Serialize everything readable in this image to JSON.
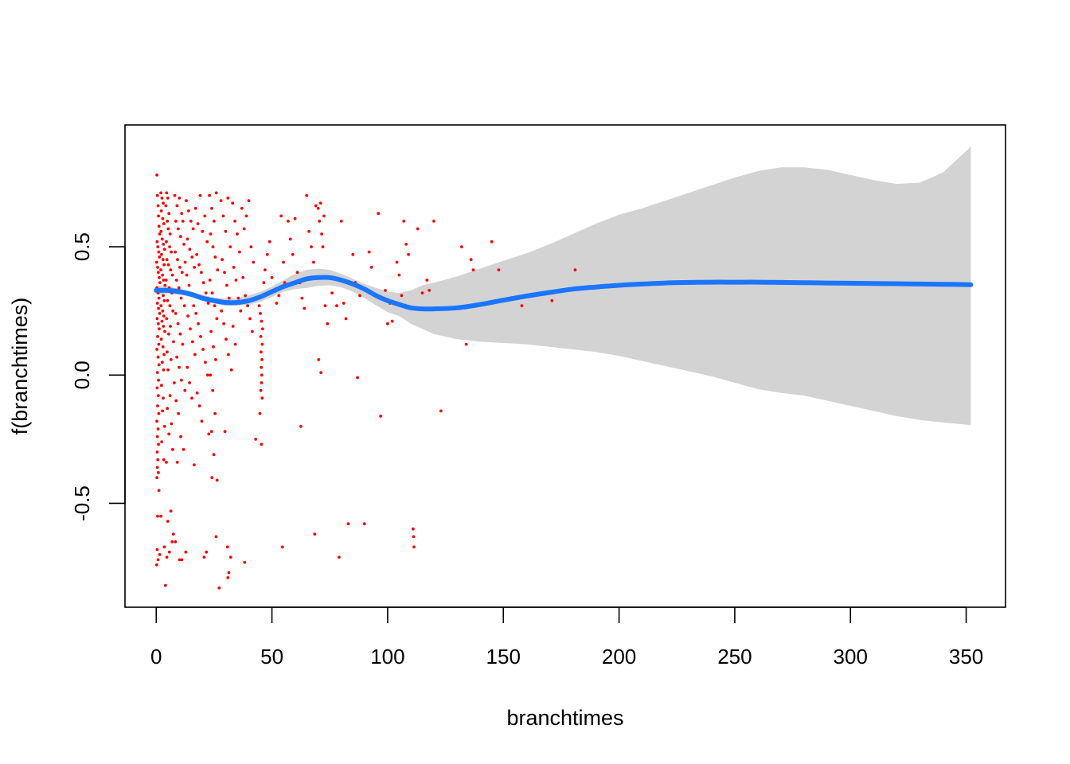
{
  "chart_data": {
    "type": "scatter",
    "title": "",
    "xlabel": "branchtimes",
    "ylabel": "f(branchtimes)",
    "xlim": [
      -13.5,
      367
    ],
    "ylim": [
      -0.905,
      0.975
    ],
    "x_ticks": [
      0,
      50,
      100,
      150,
      200,
      250,
      300,
      350
    ],
    "x_tick_labels": [
      "0",
      "50",
      "100",
      "150",
      "200",
      "250",
      "300",
      "350"
    ],
    "y_ticks": [
      -0.5,
      0.0,
      0.5
    ],
    "y_tick_labels": [
      "-0.5",
      "0.0",
      "0.5"
    ],
    "grid": false,
    "legend": "none",
    "colors": {
      "points": "#ff0000",
      "fit_line": "#1a75ff",
      "confidence_band": "#d3d3d3"
    },
    "points_rule": "partial residuals, dense near x=0",
    "fit": {
      "x": [
        0,
        5,
        10,
        15,
        20,
        25,
        30,
        35,
        40,
        45,
        50,
        55,
        60,
        65,
        70,
        75,
        80,
        85,
        90,
        95,
        100,
        105,
        110,
        115,
        120,
        130,
        140,
        150,
        160,
        170,
        180,
        190,
        200,
        210,
        220,
        230,
        240,
        250,
        260,
        270,
        280,
        290,
        300,
        310,
        320,
        330,
        340,
        352
      ],
      "y": [
        0.33,
        0.33,
        0.325,
        0.315,
        0.3,
        0.29,
        0.283,
        0.283,
        0.29,
        0.305,
        0.325,
        0.345,
        0.36,
        0.375,
        0.38,
        0.38,
        0.37,
        0.355,
        0.335,
        0.31,
        0.29,
        0.275,
        0.262,
        0.258,
        0.258,
        0.262,
        0.275,
        0.292,
        0.308,
        0.322,
        0.335,
        0.343,
        0.35,
        0.355,
        0.359,
        0.361,
        0.362,
        0.362,
        0.362,
        0.361,
        0.36,
        0.359,
        0.358,
        0.357,
        0.356,
        0.355,
        0.354,
        0.352
      ],
      "upper": [
        0.35,
        0.345,
        0.337,
        0.325,
        0.313,
        0.302,
        0.298,
        0.298,
        0.31,
        0.325,
        0.345,
        0.37,
        0.395,
        0.41,
        0.415,
        0.41,
        0.395,
        0.375,
        0.355,
        0.34,
        0.325,
        0.32,
        0.33,
        0.35,
        0.36,
        0.385,
        0.415,
        0.445,
        0.475,
        0.51,
        0.55,
        0.59,
        0.625,
        0.65,
        0.68,
        0.71,
        0.74,
        0.77,
        0.795,
        0.81,
        0.81,
        0.8,
        0.78,
        0.76,
        0.745,
        0.75,
        0.79,
        0.89
      ],
      "lower": [
        0.315,
        0.316,
        0.313,
        0.305,
        0.289,
        0.279,
        0.27,
        0.27,
        0.275,
        0.285,
        0.305,
        0.325,
        0.335,
        0.34,
        0.348,
        0.35,
        0.342,
        0.325,
        0.3,
        0.272,
        0.245,
        0.23,
        0.2,
        0.18,
        0.16,
        0.14,
        0.13,
        0.125,
        0.12,
        0.11,
        0.1,
        0.09,
        0.075,
        0.055,
        0.035,
        0.015,
        -0.005,
        -0.03,
        -0.055,
        -0.07,
        -0.08,
        -0.1,
        -0.12,
        -0.14,
        -0.16,
        -0.175,
        -0.185,
        -0.195
      ]
    },
    "points": [
      [
        0.3,
        0.78
      ],
      [
        0.5,
        0.7
      ],
      [
        0.8,
        0.66
      ],
      [
        1,
        0.62
      ],
      [
        1.2,
        0.58
      ],
      [
        1.5,
        0.55
      ],
      [
        0.4,
        0.52
      ],
      [
        0.7,
        0.5
      ],
      [
        1.1,
        0.48
      ],
      [
        1.4,
        0.46
      ],
      [
        0.2,
        0.44
      ],
      [
        0.6,
        0.42
      ],
      [
        0.9,
        0.4
      ],
      [
        1.3,
        0.38
      ],
      [
        1.6,
        0.36
      ],
      [
        0.3,
        0.34
      ],
      [
        0.8,
        0.32
      ],
      [
        1.2,
        0.3
      ],
      [
        0.5,
        0.28
      ],
      [
        1.0,
        0.26
      ],
      [
        1.5,
        0.24
      ],
      [
        0.4,
        0.22
      ],
      [
        0.9,
        0.2
      ],
      [
        1.3,
        0.18
      ],
      [
        0.6,
        0.15
      ],
      [
        1.1,
        0.12
      ],
      [
        0.3,
        0.1
      ],
      [
        0.8,
        0.07
      ],
      [
        1.2,
        0.04
      ],
      [
        0.5,
        0.01
      ],
      [
        1.0,
        -0.02
      ],
      [
        0.4,
        -0.05
      ],
      [
        0.9,
        -0.08
      ],
      [
        0.6,
        -0.12
      ],
      [
        1.1,
        -0.15
      ],
      [
        0.3,
        -0.18
      ],
      [
        0.8,
        -0.21
      ],
      [
        0.5,
        -0.24
      ],
      [
        1.0,
        -0.27
      ],
      [
        0.4,
        -0.3
      ],
      [
        0.7,
        -0.33
      ],
      [
        0.5,
        -0.36
      ],
      [
        0.9,
        -0.38
      ],
      [
        0.3,
        -0.4
      ],
      [
        1.2,
        -0.45
      ],
      [
        0.6,
        -0.55
      ],
      [
        0.4,
        -0.68
      ],
      [
        0.8,
        -0.72
      ],
      [
        1.5,
        -0.7
      ],
      [
        0.2,
        -0.74
      ],
      [
        2,
        0.71
      ],
      [
        2.5,
        0.69
      ],
      [
        3,
        0.67
      ],
      [
        2.2,
        0.64
      ],
      [
        2.8,
        0.61
      ],
      [
        3.3,
        0.59
      ],
      [
        2.1,
        0.56
      ],
      [
        2.6,
        0.53
      ],
      [
        3.1,
        0.51
      ],
      [
        3.6,
        0.49
      ],
      [
        2.3,
        0.47
      ],
      [
        2.9,
        0.45
      ],
      [
        3.4,
        0.43
      ],
      [
        2.0,
        0.41
      ],
      [
        2.7,
        0.39
      ],
      [
        3.2,
        0.37
      ],
      [
        3.8,
        0.35
      ],
      [
        2.4,
        0.33
      ],
      [
        3.0,
        0.31
      ],
      [
        3.5,
        0.29
      ],
      [
        2.1,
        0.27
      ],
      [
        2.8,
        0.25
      ],
      [
        3.3,
        0.23
      ],
      [
        2.5,
        0.21
      ],
      [
        3.1,
        0.19
      ],
      [
        3.7,
        0.17
      ],
      [
        2.2,
        0.14
      ],
      [
        2.9,
        0.11
      ],
      [
        3.4,
        0.08
      ],
      [
        2.6,
        0.05
      ],
      [
        3.2,
        0.02
      ],
      [
        2.3,
        -0.04
      ],
      [
        3.0,
        -0.09
      ],
      [
        2.7,
        -0.14
      ],
      [
        3.6,
        -0.2
      ],
      [
        2.4,
        -0.26
      ],
      [
        3.3,
        -0.33
      ],
      [
        2.0,
        -0.55
      ],
      [
        3.5,
        -0.67
      ],
      [
        4,
        -0.82
      ],
      [
        4.5,
        0.71
      ],
      [
        5,
        0.69
      ],
      [
        4.2,
        0.66
      ],
      [
        5.5,
        0.63
      ],
      [
        4.8,
        0.6
      ],
      [
        5.2,
        0.57
      ],
      [
        6,
        0.55
      ],
      [
        4.4,
        0.52
      ],
      [
        5.8,
        0.5
      ],
      [
        6.5,
        0.48
      ],
      [
        4.6,
        0.45
      ],
      [
        5.3,
        0.43
      ],
      [
        6.2,
        0.41
      ],
      [
        7,
        0.39
      ],
      [
        4.3,
        0.37
      ],
      [
        5.6,
        0.34
      ],
      [
        6.8,
        0.32
      ],
      [
        4.9,
        0.29
      ],
      [
        5.9,
        0.27
      ],
      [
        7.2,
        0.25
      ],
      [
        4.5,
        0.22
      ],
      [
        6.1,
        0.19
      ],
      [
        5.4,
        0.16
      ],
      [
        7.5,
        0.13
      ],
      [
        4.7,
        0.09
      ],
      [
        6.4,
        0.06
      ],
      [
        5.1,
        0.02
      ],
      [
        7.8,
        -0.03
      ],
      [
        6.0,
        -0.08
      ],
      [
        4.8,
        -0.13
      ],
      [
        6.6,
        -0.19
      ],
      [
        5.5,
        -0.23
      ],
      [
        7.1,
        -0.29
      ],
      [
        4.4,
        -0.34
      ],
      [
        6.3,
        -0.53
      ],
      [
        5.0,
        -0.57
      ],
      [
        7.4,
        -0.62
      ],
      [
        6.9,
        -0.65
      ],
      [
        5.7,
        -0.69
      ],
      [
        4.6,
        -0.71
      ],
      [
        8,
        0.7
      ],
      [
        9,
        0.66
      ],
      [
        10,
        0.69
      ],
      [
        11,
        0.63
      ],
      [
        8.5,
        0.6
      ],
      [
        9.5,
        0.57
      ],
      [
        10.5,
        0.54
      ],
      [
        11.5,
        0.6
      ],
      [
        12,
        0.51
      ],
      [
        8.2,
        0.48
      ],
      [
        9.2,
        0.45
      ],
      [
        10.2,
        0.42
      ],
      [
        11.2,
        0.4
      ],
      [
        12.5,
        0.44
      ],
      [
        8.8,
        0.37
      ],
      [
        9.8,
        0.34
      ],
      [
        10.8,
        0.3
      ],
      [
        12.2,
        0.27
      ],
      [
        8.4,
        0.24
      ],
      [
        9.4,
        0.2
      ],
      [
        10.4,
        0.16
      ],
      [
        11.4,
        0.12
      ],
      [
        8.9,
        0.07
      ],
      [
        9.9,
        0.03
      ],
      [
        10.9,
        -0.02
      ],
      [
        12.4,
        -0.06
      ],
      [
        8.6,
        -0.1
      ],
      [
        9.6,
        -0.15
      ],
      [
        10.6,
        -0.24
      ],
      [
        11.8,
        -0.29
      ],
      [
        9.1,
        -0.34
      ],
      [
        10.1,
        -0.72
      ],
      [
        11.1,
        -0.72
      ],
      [
        8.3,
        -0.65
      ],
      [
        12.8,
        -0.69
      ],
      [
        13,
        0.68
      ],
      [
        14,
        0.64
      ],
      [
        15,
        0.6
      ],
      [
        16,
        0.57
      ],
      [
        13.5,
        0.53
      ],
      [
        14.5,
        0.49
      ],
      [
        15.5,
        0.46
      ],
      [
        16.5,
        0.42
      ],
      [
        13.2,
        0.39
      ],
      [
        14.2,
        0.35
      ],
      [
        15.2,
        0.31
      ],
      [
        16.2,
        0.27
      ],
      [
        13.7,
        0.23
      ],
      [
        14.7,
        0.18
      ],
      [
        15.7,
        0.13
      ],
      [
        16.7,
        0.08
      ],
      [
        13.4,
        0.03
      ],
      [
        14.4,
        -0.03
      ],
      [
        15.4,
        -0.09
      ],
      [
        16.4,
        -0.35
      ],
      [
        17,
        0.65
      ],
      [
        18,
        0.59
      ],
      [
        19,
        0.7
      ],
      [
        20,
        0.56
      ],
      [
        21,
        0.62
      ],
      [
        22,
        0.52
      ],
      [
        17.5,
        0.47
      ],
      [
        18.5,
        0.43
      ],
      [
        19.5,
        0.4
      ],
      [
        20.5,
        0.36
      ],
      [
        21.5,
        0.32
      ],
      [
        22.5,
        0.28
      ],
      [
        17.2,
        0.24
      ],
      [
        18.2,
        0.2
      ],
      [
        19.2,
        0.15
      ],
      [
        20.2,
        0.1
      ],
      [
        21.2,
        0.05
      ],
      [
        22.2,
        0.0
      ],
      [
        17.7,
        -0.07
      ],
      [
        18.7,
        -0.12
      ],
      [
        19.7,
        -0.18
      ],
      [
        20.7,
        -0.71
      ],
      [
        21.7,
        -0.69
      ],
      [
        22.7,
        -0.23
      ],
      [
        23,
        0.7
      ],
      [
        24,
        0.65
      ],
      [
        25,
        0.6
      ],
      [
        26,
        0.71
      ],
      [
        23.5,
        0.55
      ],
      [
        24.5,
        0.5
      ],
      [
        25.5,
        0.46
      ],
      [
        26.5,
        0.41
      ],
      [
        23.2,
        0.37
      ],
      [
        24.2,
        0.32
      ],
      [
        25.2,
        0.27
      ],
      [
        26.2,
        0.22
      ],
      [
        23.7,
        0.17
      ],
      [
        24.7,
        0.11
      ],
      [
        25.7,
        0.06
      ],
      [
        23.4,
        0.0
      ],
      [
        24.4,
        -0.06
      ],
      [
        25.4,
        -0.15
      ],
      [
        23.9,
        -0.22
      ],
      [
        24.9,
        -0.31
      ],
      [
        24.1,
        -0.4
      ],
      [
        25.9,
        -0.63
      ],
      [
        26.3,
        -0.41
      ],
      [
        27.2,
        -0.83
      ],
      [
        28,
        0.68
      ],
      [
        29,
        0.62
      ],
      [
        30,
        0.56
      ],
      [
        31,
        0.69
      ],
      [
        32,
        0.5
      ],
      [
        28.5,
        0.45
      ],
      [
        29.5,
        0.4
      ],
      [
        30.5,
        0.35
      ],
      [
        31.5,
        0.3
      ],
      [
        28.2,
        0.25
      ],
      [
        29.2,
        0.2
      ],
      [
        30.2,
        0.14
      ],
      [
        31.2,
        0.08
      ],
      [
        32.5,
        0.02
      ],
      [
        29.7,
        -0.22
      ],
      [
        30.8,
        -0.67
      ],
      [
        31.4,
        -0.77
      ],
      [
        32.2,
        -0.71
      ],
      [
        31.0,
        -0.79
      ],
      [
        33,
        0.67
      ],
      [
        34,
        0.6
      ],
      [
        35,
        0.55
      ],
      [
        36,
        0.48
      ],
      [
        33.5,
        0.42
      ],
      [
        34.5,
        0.37
      ],
      [
        35.5,
        0.3
      ],
      [
        36.5,
        0.25
      ],
      [
        33.2,
        0.19
      ],
      [
        34.2,
        0.12
      ],
      [
        37,
        0.65
      ],
      [
        38,
        0.57
      ],
      [
        39,
        0.62
      ],
      [
        40,
        0.68
      ],
      [
        41,
        0.5
      ],
      [
        42,
        0.44
      ],
      [
        37.5,
        0.38
      ],
      [
        38.5,
        0.31
      ],
      [
        39.5,
        0.27
      ],
      [
        40.5,
        0.22
      ],
      [
        41.5,
        0.17
      ],
      [
        38.2,
        -0.73
      ],
      [
        43,
        -0.25
      ],
      [
        44,
        0.3
      ],
      [
        44.5,
        0.27
      ],
      [
        45,
        0.24
      ],
      [
        45.5,
        0.21
      ],
      [
        46,
        0.18
      ],
      [
        45.2,
        0.15
      ],
      [
        45.8,
        0.12
      ],
      [
        45.3,
        0.09
      ],
      [
        45.7,
        0.06
      ],
      [
        45.4,
        0.03
      ],
      [
        45.6,
        0.0
      ],
      [
        45.5,
        -0.03
      ],
      [
        45.2,
        -0.06
      ],
      [
        45.8,
        -0.09
      ],
      [
        44.8,
        -0.15
      ],
      [
        45.5,
        -0.27
      ],
      [
        46.5,
        0.36
      ],
      [
        47,
        0.41
      ],
      [
        48,
        0.47
      ],
      [
        49,
        0.52
      ],
      [
        50,
        0.38
      ],
      [
        51,
        0.33
      ],
      [
        52,
        0.28
      ],
      [
        53,
        0.31
      ],
      [
        54,
        0.62
      ],
      [
        55,
        0.44
      ],
      [
        55.5,
        0.36
      ],
      [
        54.5,
        -0.67
      ],
      [
        57,
        0.6
      ],
      [
        58,
        0.53
      ],
      [
        59,
        0.47
      ],
      [
        60,
        0.61
      ],
      [
        61,
        0.4
      ],
      [
        62,
        0.36
      ],
      [
        62.5,
        -0.2
      ],
      [
        63,
        0.3
      ],
      [
        64,
        0.26
      ],
      [
        65,
        0.7
      ],
      [
        66,
        0.56
      ],
      [
        67,
        0.5
      ],
      [
        68,
        0.44
      ],
      [
        68.5,
        -0.62
      ],
      [
        69,
        0.66
      ],
      [
        70,
        0.65
      ],
      [
        70.5,
        0.6
      ],
      [
        71,
        0.67
      ],
      [
        71.5,
        0.55
      ],
      [
        72,
        0.5
      ],
      [
        72.5,
        0.62
      ],
      [
        73,
        0.27
      ],
      [
        74,
        0.2
      ],
      [
        70.2,
        0.06
      ],
      [
        71.2,
        0.01
      ],
      [
        75,
        0.38
      ],
      [
        76,
        0.32
      ],
      [
        78,
        0.27
      ],
      [
        80,
        0.6
      ],
      [
        81,
        0.28
      ],
      [
        82,
        0.22
      ],
      [
        79,
        -0.71
      ],
      [
        83,
        -0.58
      ],
      [
        85,
        0.47
      ],
      [
        86,
        0.36
      ],
      [
        88,
        0.31
      ],
      [
        87,
        -0.01
      ],
      [
        90,
        -0.58
      ],
      [
        92,
        0.48
      ],
      [
        93,
        0.42
      ],
      [
        96,
        0.63
      ],
      [
        97,
        -0.16
      ],
      [
        99,
        0.33
      ],
      [
        100,
        0.2
      ],
      [
        101,
        0.28
      ],
      [
        102,
        0.21
      ],
      [
        104,
        0.44
      ],
      [
        105,
        0.39
      ],
      [
        106,
        0.31
      ],
      [
        107,
        0.6
      ],
      [
        108,
        0.51
      ],
      [
        109,
        0.47
      ],
      [
        110,
        0.26
      ],
      [
        111,
        -0.6
      ],
      [
        111.2,
        -0.63
      ],
      [
        111.4,
        -0.67
      ],
      [
        112,
        0.26
      ],
      [
        113,
        0.57
      ],
      [
        115,
        0.32
      ],
      [
        117,
        0.37
      ],
      [
        118,
        0.33
      ],
      [
        120,
        0.6
      ],
      [
        123,
        -0.14
      ],
      [
        132,
        0.5
      ],
      [
        134,
        0.12
      ],
      [
        136,
        0.45
      ],
      [
        137,
        0.41
      ],
      [
        145,
        0.52
      ],
      [
        148,
        0.41
      ],
      [
        158,
        0.27
      ],
      [
        171,
        0.29
      ],
      [
        181,
        0.41
      ],
      [
        267,
        0.36
      ]
    ]
  }
}
